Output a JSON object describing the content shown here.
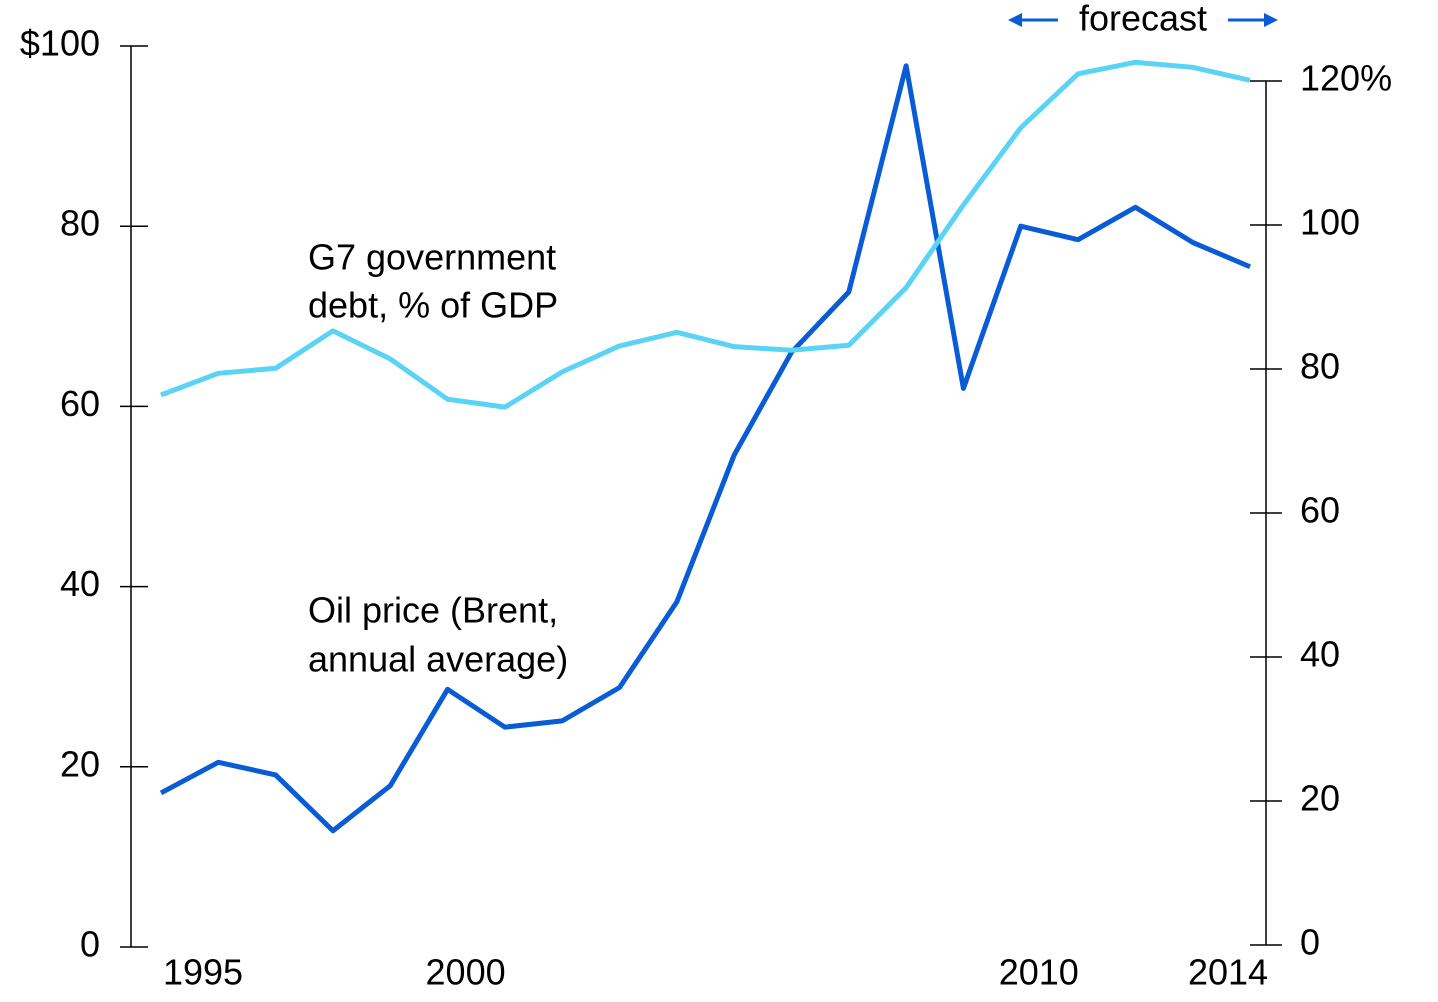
{
  "chart_data": {
    "type": "line",
    "annotation": "forecast",
    "x": [
      1995,
      1996,
      1997,
      1998,
      1999,
      2000,
      2001,
      2002,
      2003,
      2004,
      2005,
      2006,
      2007,
      2008,
      2009,
      2010,
      2011,
      2012,
      2013,
      2014
    ],
    "xlim": [
      1995,
      2014
    ],
    "xticks": [
      1995,
      2000,
      2010,
      2014
    ],
    "ylim": [
      0,
      100
    ],
    "yticks": [
      0,
      20,
      40,
      60,
      80,
      {
        "value": 100,
        "label": "$100"
      }
    ],
    "y2lim": [
      0,
      120
    ],
    "y2ticks": [
      0,
      20,
      40,
      60,
      80,
      100,
      {
        "value": 120,
        "label": "120%"
      }
    ],
    "series": [
      {
        "name": [
          "Oil price (Brent,",
          "annual average)"
        ],
        "color": "#0a5bd6",
        "values": [
          17.1,
          20.5,
          19.1,
          12.9,
          17.9,
          28.6,
          24.4,
          25.1,
          28.8,
          38.3,
          54.6,
          66.0,
          72.7,
          97.8,
          62.0,
          80.0,
          78.5,
          82.1,
          78.2,
          75.5
        ]
      },
      {
        "name": [
          "G7 government",
          "debt, % of GDP"
        ],
        "color": "#5bd3f5",
        "axis": "y2",
        "values": [
          76.4,
          79.4,
          80.1,
          85.3,
          81.4,
          75.8,
          74.7,
          79.6,
          83.2,
          85.1,
          83.1,
          82.6,
          83.3,
          91.3,
          102.8,
          113.5,
          121.0,
          122.6,
          121.9,
          120.1
        ]
      }
    ]
  }
}
